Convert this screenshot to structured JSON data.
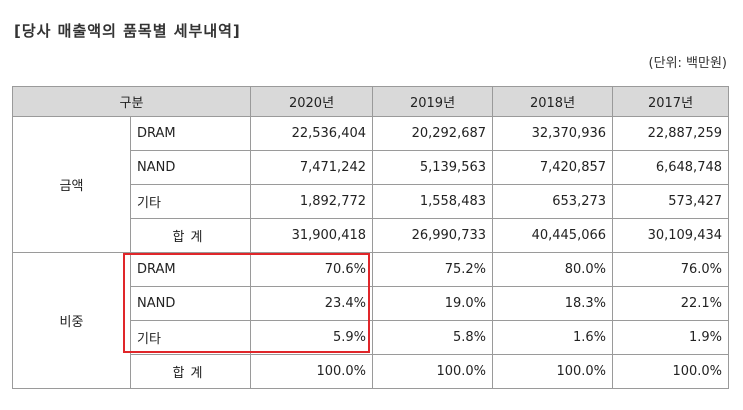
{
  "header": {
    "title": "[당사 매출액의 품목별 세부내역]",
    "unit": "(단위: 백만원)"
  },
  "table": {
    "columns": [
      "구분",
      "2020년",
      "2019년",
      "2018년",
      "2017년"
    ],
    "groups": [
      {
        "label": "금액",
        "rows": [
          {
            "item": "DRAM",
            "values": [
              "22,536,404",
              "20,292,687",
              "32,370,936",
              "22,887,259"
            ]
          },
          {
            "item": "NAND",
            "values": [
              "7,471,242",
              "5,139,563",
              "7,420,857",
              "6,648,748"
            ]
          },
          {
            "item": "기타",
            "values": [
              "1,892,772",
              "1,558,483",
              "653,273",
              "573,427"
            ]
          },
          {
            "item": "합계",
            "values": [
              "31,900,418",
              "26,990,733",
              "40,445,066",
              "30,109,434"
            ]
          }
        ]
      },
      {
        "label": "비중",
        "rows": [
          {
            "item": "DRAM",
            "values": [
              "70.6%",
              "75.2%",
              "80.0%",
              "76.0%"
            ]
          },
          {
            "item": "NAND",
            "values": [
              "23.4%",
              "19.0%",
              "18.3%",
              "22.1%"
            ]
          },
          {
            "item": "기타",
            "values": [
              "5.9%",
              "5.8%",
              "1.6%",
              "1.9%"
            ]
          },
          {
            "item": "합계",
            "values": [
              "100.0%",
              "100.0%",
              "100.0%",
              "100.0%"
            ]
          }
        ]
      }
    ]
  }
}
